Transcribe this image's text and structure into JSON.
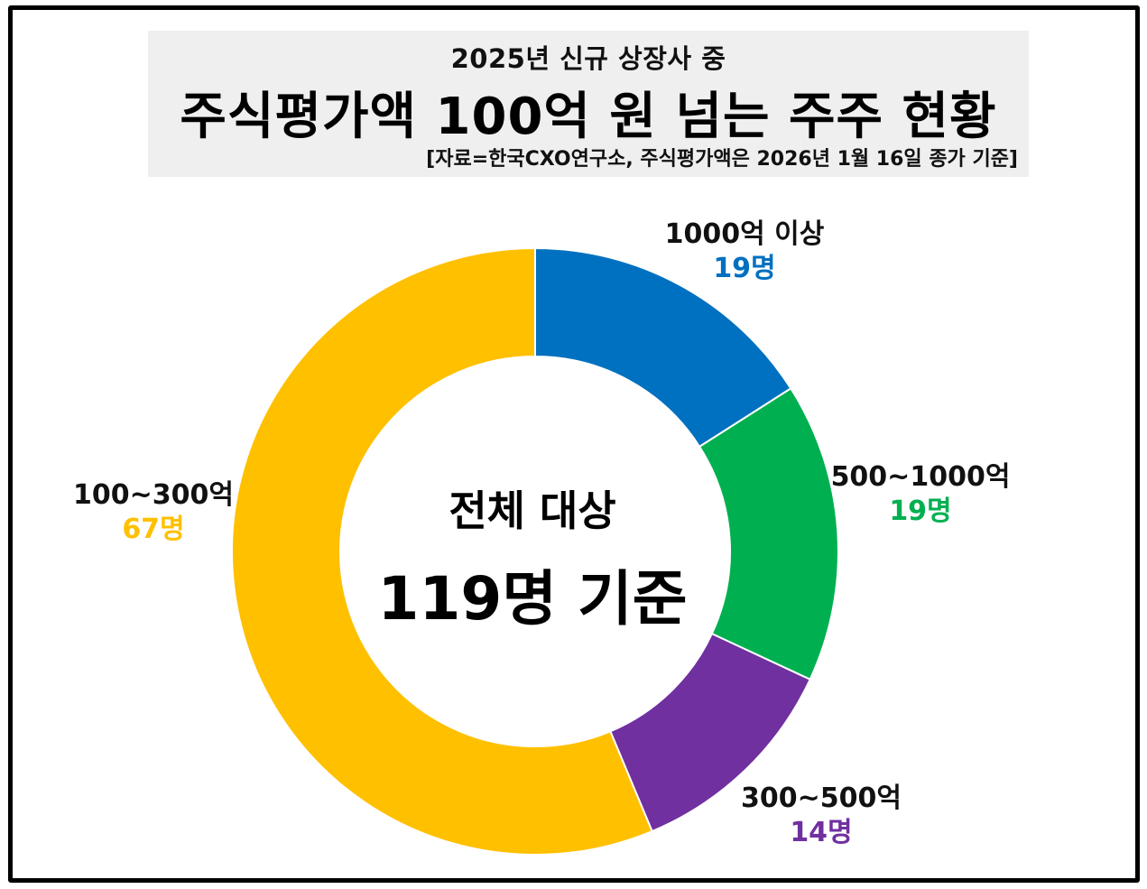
{
  "header": {
    "subtitle": "2025년 신규 상장사 중",
    "title": "주식평가액 100억 원 넘는 주주 현황",
    "source": "[자료=한국CXO연구소, 주식평가액은 2026년 1월 16일 종가 기준]"
  },
  "center": {
    "line1": "전체 대상",
    "line2": "119명 기준"
  },
  "chart_data": {
    "type": "pie",
    "donut": true,
    "total": 119,
    "series": [
      {
        "name": "1000억 이상",
        "value": 19,
        "label": "19명",
        "color": "#0070C0"
      },
      {
        "name": "500~1000억",
        "value": 19,
        "label": "19명",
        "color": "#00B050"
      },
      {
        "name": "300~500억",
        "value": 14,
        "label": "14명",
        "color": "#7030A0"
      },
      {
        "name": "100~300억",
        "value": 67,
        "label": "67명",
        "color": "#FFC000"
      }
    ]
  }
}
